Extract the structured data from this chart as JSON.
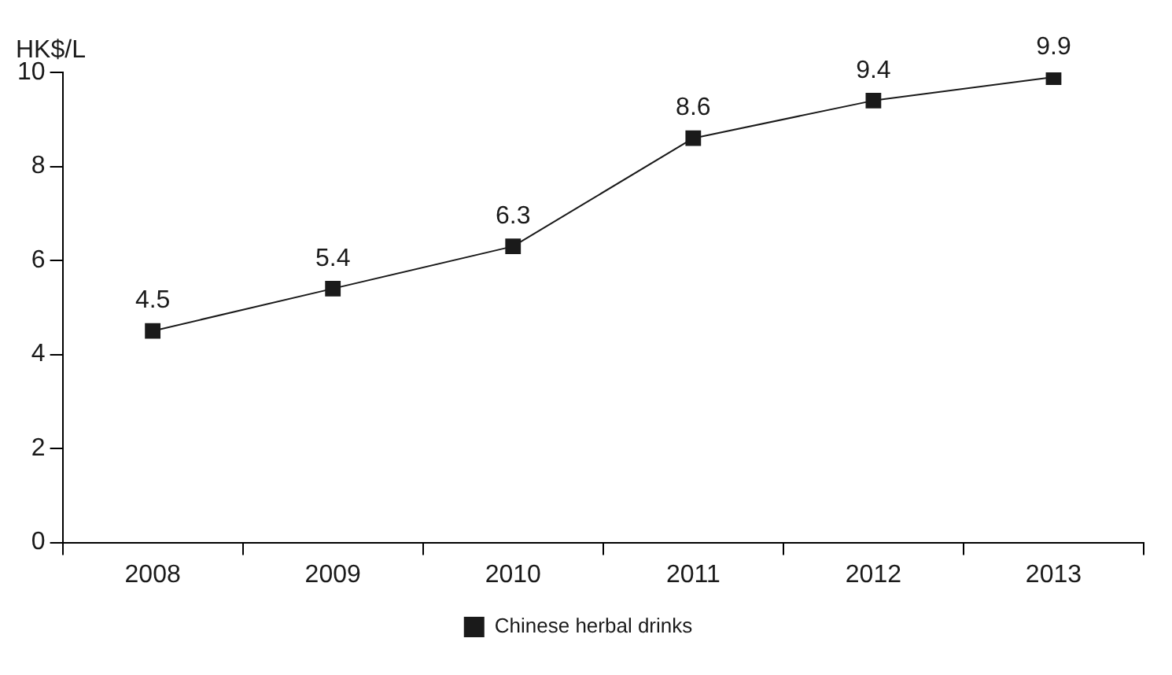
{
  "chart_data": {
    "type": "line",
    "ylabel": "HK$/L",
    "categories": [
      "2008",
      "2009",
      "2010",
      "2011",
      "2012",
      "2013"
    ],
    "series": [
      {
        "name": "Chinese herbal drinks",
        "color": "#1a1a1a",
        "values": [
          4.5,
          5.4,
          6.3,
          8.6,
          9.4,
          9.9
        ]
      }
    ],
    "ylim": [
      0,
      10
    ],
    "yticks": [
      0,
      2,
      4,
      6,
      8,
      10
    ],
    "grid": false,
    "legend": "bottom",
    "marker": "square",
    "line_style": "solid",
    "data_labels": true
  }
}
